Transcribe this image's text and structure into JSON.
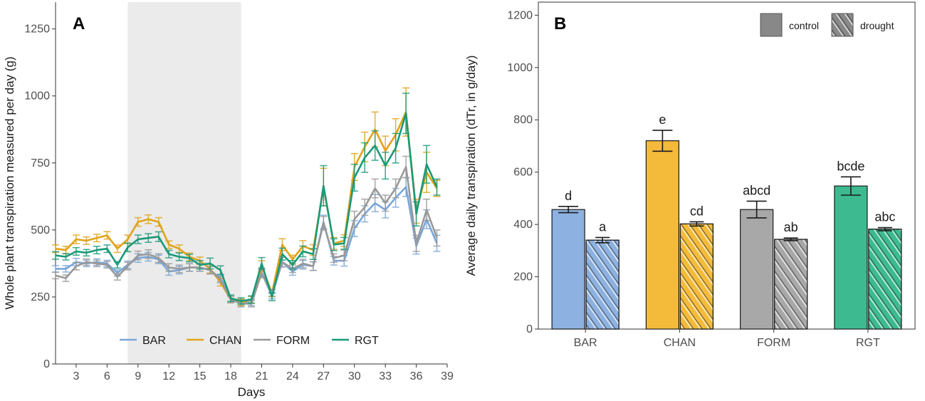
{
  "chart_data": [
    {
      "panel": "A",
      "type": "line",
      "title": "",
      "xlabel": "Days",
      "ylabel": "Whole plant transpiration measured per day (g)",
      "xlim": [
        1,
        39
      ],
      "ylim": [
        0,
        1350
      ],
      "xticks": [
        3,
        6,
        9,
        12,
        15,
        18,
        21,
        24,
        27,
        30,
        33,
        36,
        39
      ],
      "yticks": [
        0,
        250,
        500,
        750,
        1000,
        1250
      ],
      "shaded_region": [
        8,
        19
      ],
      "legend_position": "bottom",
      "x": [
        1,
        2,
        3,
        4,
        5,
        6,
        7,
        8,
        9,
        10,
        11,
        12,
        13,
        14,
        15,
        16,
        17,
        18,
        19,
        20,
        21,
        22,
        23,
        24,
        25,
        26,
        27,
        28,
        29,
        30,
        31,
        32,
        33,
        34,
        35,
        36,
        37,
        38
      ],
      "series": [
        {
          "name": "BAR",
          "color": "#7aa6d8",
          "values": [
            355,
            355,
            380,
            375,
            380,
            375,
            340,
            370,
            395,
            400,
            390,
            345,
            350,
            360,
            360,
            350,
            320,
            245,
            230,
            230,
            340,
            255,
            380,
            345,
            370,
            365,
            530,
            385,
            385,
            505,
            560,
            600,
            575,
            620,
            660,
            440,
            540,
            450
          ],
          "errors": [
            12,
            12,
            14,
            12,
            12,
            12,
            12,
            14,
            16,
            16,
            16,
            14,
            14,
            14,
            14,
            14,
            12,
            12,
            12,
            12,
            18,
            12,
            18,
            14,
            16,
            16,
            25,
            16,
            20,
            30,
            30,
            32,
            30,
            35,
            35,
            30,
            35,
            30
          ]
        },
        {
          "name": "CHAN",
          "color": "#e0a31a",
          "values": [
            430,
            425,
            465,
            460,
            470,
            480,
            430,
            465,
            530,
            540,
            530,
            445,
            430,
            400,
            385,
            355,
            305,
            240,
            230,
            240,
            365,
            265,
            445,
            390,
            440,
            425,
            660,
            450,
            460,
            735,
            810,
            875,
            795,
            855,
            940,
            570,
            715,
            655
          ],
          "errors": [
            14,
            14,
            16,
            14,
            14,
            14,
            14,
            16,
            16,
            16,
            16,
            14,
            14,
            14,
            14,
            16,
            14,
            12,
            12,
            12,
            20,
            14,
            22,
            16,
            20,
            20,
            70,
            22,
            22,
            50,
            55,
            65,
            55,
            60,
            90,
            45,
            75,
            30
          ]
        },
        {
          "name": "FORM",
          "color": "#999999",
          "values": [
            330,
            320,
            365,
            380,
            375,
            370,
            325,
            365,
            405,
            410,
            395,
            360,
            355,
            360,
            360,
            350,
            315,
            240,
            225,
            225,
            340,
            265,
            380,
            355,
            375,
            365,
            525,
            395,
            405,
            540,
            585,
            655,
            600,
            655,
            735,
            450,
            575,
            470
          ],
          "errors": [
            12,
            12,
            14,
            12,
            12,
            12,
            12,
            14,
            16,
            16,
            16,
            14,
            14,
            14,
            14,
            14,
            12,
            12,
            12,
            12,
            18,
            12,
            18,
            14,
            16,
            16,
            25,
            16,
            20,
            30,
            30,
            35,
            30,
            35,
            40,
            30,
            40,
            30
          ]
        },
        {
          "name": "RGT",
          "color": "#1a9978",
          "values": [
            405,
            400,
            420,
            415,
            425,
            430,
            370,
            435,
            465,
            470,
            475,
            410,
            400,
            395,
            370,
            375,
            350,
            245,
            235,
            240,
            375,
            250,
            410,
            370,
            420,
            410,
            665,
            445,
            450,
            695,
            770,
            815,
            740,
            805,
            935,
            560,
            745,
            660
          ],
          "errors": [
            14,
            12,
            14,
            12,
            14,
            14,
            12,
            16,
            16,
            16,
            18,
            14,
            14,
            14,
            16,
            20,
            16,
            12,
            12,
            14,
            22,
            14,
            22,
            16,
            20,
            20,
            75,
            22,
            22,
            50,
            55,
            55,
            50,
            55,
            75,
            45,
            70,
            30
          ]
        }
      ]
    },
    {
      "panel": "B",
      "type": "bar",
      "title": "",
      "xlabel": "",
      "ylabel": "Average daily transpiration (dTr, in g/day)",
      "ylim": [
        0,
        1250
      ],
      "yticks": [
        0,
        200,
        400,
        600,
        800,
        1000,
        1200
      ],
      "categories": [
        "BAR",
        "CHAN",
        "FORM",
        "RGT"
      ],
      "colors": [
        "#8db1e0",
        "#f4bb3b",
        "#a8a8a8",
        "#3dba90"
      ],
      "legend_position": "top-right",
      "legend": [
        "control",
        "drought"
      ],
      "series": [
        {
          "name": "control",
          "values": [
            457,
            720,
            457,
            547
          ],
          "errors": [
            12,
            40,
            32,
            35
          ],
          "labels": [
            "d",
            "e",
            "abcd",
            "bcde"
          ]
        },
        {
          "name": "drought",
          "values": [
            340,
            402,
            343,
            382
          ],
          "errors": [
            10,
            8,
            5,
            6
          ],
          "labels": [
            "a",
            "cd",
            "ab",
            "abc"
          ]
        }
      ]
    }
  ]
}
